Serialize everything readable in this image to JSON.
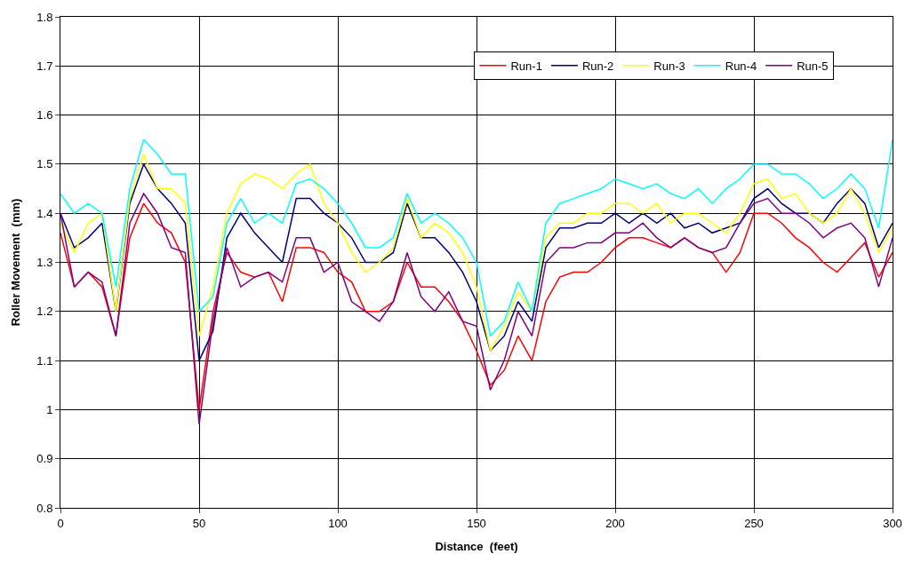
{
  "chart_data": {
    "type": "line",
    "xlabel": "Distance  (feet)",
    "ylabel": "Roller Movement  (mm)",
    "x": [
      0,
      5,
      10,
      15,
      20,
      25,
      30,
      35,
      40,
      45,
      50,
      55,
      60,
      65,
      70,
      75,
      80,
      85,
      90,
      95,
      100,
      105,
      110,
      115,
      120,
      125,
      130,
      135,
      140,
      145,
      150,
      155,
      160,
      165,
      170,
      175,
      180,
      185,
      190,
      195,
      200,
      205,
      210,
      215,
      220,
      225,
      230,
      235,
      240,
      245,
      250,
      255,
      260,
      265,
      270,
      275,
      280,
      285,
      290,
      295,
      300
    ],
    "xlim": [
      0,
      300
    ],
    "xticks": [
      0,
      50,
      100,
      150,
      200,
      250,
      300
    ],
    "ylim": [
      0.8,
      1.8
    ],
    "yticks": [
      {
        "value": 0.8,
        "label": "0.8"
      },
      {
        "value": 0.9,
        "label": "0.9"
      },
      {
        "value": 1.0,
        "label": "1"
      },
      {
        "value": 1.1,
        "label": "1.1"
      },
      {
        "value": 1.2,
        "label": "1.2"
      },
      {
        "value": 1.3,
        "label": "1.3"
      },
      {
        "value": 1.4,
        "label": "1.4"
      },
      {
        "value": 1.5,
        "label": "1.5"
      },
      {
        "value": 1.6,
        "label": "1.6"
      },
      {
        "value": 1.7,
        "label": "1.7"
      },
      {
        "value": 1.8,
        "label": "1.8"
      }
    ],
    "grid": true,
    "legend": "top right",
    "marker": "none",
    "line_style": "solid",
    "series": [
      {
        "name": "Run-1",
        "color": "#ff0000",
        "values": [
          1.36,
          1.25,
          1.28,
          1.25,
          1.15,
          1.35,
          1.42,
          1.38,
          1.36,
          1.3,
          1.0,
          1.2,
          1.32,
          1.28,
          1.27,
          1.28,
          1.22,
          1.33,
          1.33,
          1.32,
          1.28,
          1.26,
          1.2,
          1.2,
          1.22,
          1.3,
          1.25,
          1.25,
          1.22,
          1.18,
          1.12,
          1.05,
          1.08,
          1.15,
          1.1,
          1.22,
          1.27,
          1.28,
          1.28,
          1.3,
          1.33,
          1.35,
          1.35,
          1.34,
          1.33,
          1.35,
          1.33,
          1.32,
          1.28,
          1.32,
          1.4,
          1.4,
          1.38,
          1.35,
          1.33,
          1.3,
          1.28,
          1.31,
          1.34,
          1.27,
          1.32
        ]
      },
      {
        "name": "Run-2",
        "color": "#000080",
        "values": [
          1.4,
          1.33,
          1.35,
          1.38,
          1.2,
          1.42,
          1.5,
          1.45,
          1.42,
          1.38,
          1.1,
          1.16,
          1.35,
          1.4,
          1.36,
          1.33,
          1.3,
          1.43,
          1.43,
          1.4,
          1.38,
          1.35,
          1.3,
          1.3,
          1.32,
          1.42,
          1.35,
          1.35,
          1.32,
          1.28,
          1.22,
          1.12,
          1.15,
          1.22,
          1.18,
          1.33,
          1.37,
          1.37,
          1.38,
          1.38,
          1.4,
          1.38,
          1.4,
          1.38,
          1.4,
          1.37,
          1.38,
          1.36,
          1.37,
          1.38,
          1.43,
          1.45,
          1.42,
          1.4,
          1.4,
          1.38,
          1.42,
          1.45,
          1.42,
          1.33,
          1.38
        ]
      },
      {
        "name": "Run-3",
        "color": "#ffff00",
        "values": [
          1.38,
          1.32,
          1.38,
          1.4,
          1.2,
          1.43,
          1.52,
          1.45,
          1.45,
          1.42,
          1.15,
          1.25,
          1.4,
          1.46,
          1.48,
          1.47,
          1.45,
          1.48,
          1.5,
          1.42,
          1.38,
          1.32,
          1.28,
          1.3,
          1.33,
          1.43,
          1.35,
          1.38,
          1.36,
          1.32,
          1.25,
          1.12,
          1.17,
          1.24,
          1.2,
          1.35,
          1.38,
          1.38,
          1.4,
          1.4,
          1.42,
          1.42,
          1.4,
          1.42,
          1.38,
          1.4,
          1.4,
          1.38,
          1.36,
          1.4,
          1.46,
          1.47,
          1.43,
          1.44,
          1.4,
          1.38,
          1.4,
          1.45,
          1.4,
          1.32,
          1.37
        ]
      },
      {
        "name": "Run-4",
        "color": "#00ffff",
        "values": [
          1.44,
          1.4,
          1.42,
          1.4,
          1.25,
          1.45,
          1.55,
          1.52,
          1.48,
          1.48,
          1.2,
          1.23,
          1.38,
          1.43,
          1.38,
          1.4,
          1.38,
          1.46,
          1.47,
          1.45,
          1.42,
          1.38,
          1.33,
          1.33,
          1.35,
          1.44,
          1.38,
          1.4,
          1.38,
          1.35,
          1.3,
          1.15,
          1.18,
          1.26,
          1.2,
          1.38,
          1.42,
          1.43,
          1.44,
          1.45,
          1.47,
          1.46,
          1.45,
          1.46,
          1.44,
          1.43,
          1.45,
          1.42,
          1.45,
          1.47,
          1.5,
          1.5,
          1.48,
          1.48,
          1.46,
          1.43,
          1.45,
          1.48,
          1.45,
          1.37,
          1.55
        ]
      },
      {
        "name": "Run-5",
        "color": "#800080",
        "values": [
          1.4,
          1.25,
          1.28,
          1.26,
          1.15,
          1.38,
          1.44,
          1.4,
          1.33,
          1.32,
          0.97,
          1.18,
          1.33,
          1.25,
          1.27,
          1.28,
          1.26,
          1.35,
          1.35,
          1.28,
          1.3,
          1.22,
          1.2,
          1.18,
          1.22,
          1.32,
          1.23,
          1.2,
          1.24,
          1.18,
          1.17,
          1.04,
          1.1,
          1.2,
          1.15,
          1.3,
          1.33,
          1.33,
          1.34,
          1.34,
          1.36,
          1.36,
          1.38,
          1.35,
          1.33,
          1.35,
          1.33,
          1.32,
          1.33,
          1.38,
          1.42,
          1.43,
          1.4,
          1.4,
          1.38,
          1.35,
          1.37,
          1.38,
          1.35,
          1.25,
          1.35
        ]
      }
    ]
  }
}
